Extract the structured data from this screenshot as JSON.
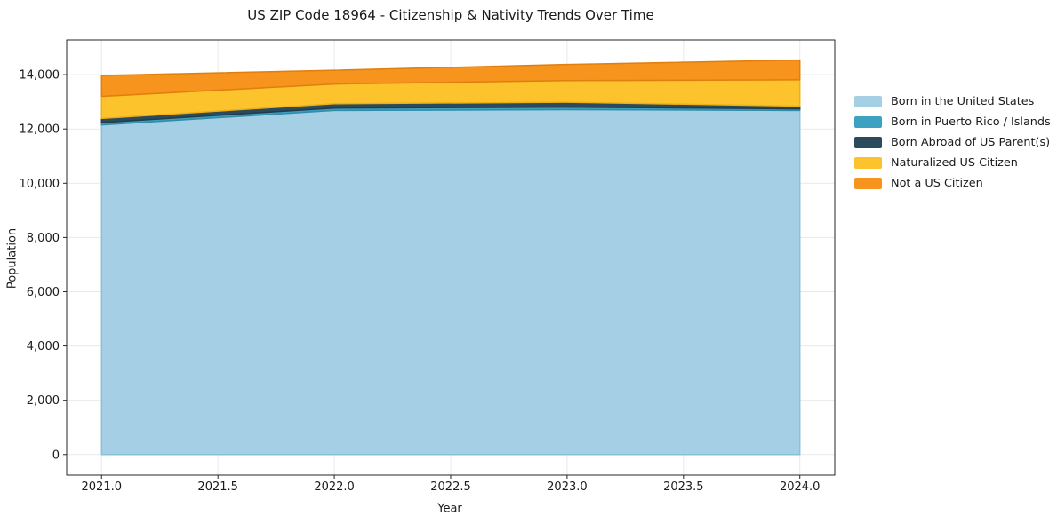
{
  "chart_data": {
    "type": "area",
    "stacked": true,
    "title": "US ZIP Code 18964 - Citizenship & Nativity Trends Over Time",
    "xlabel": "Year",
    "ylabel": "Population",
    "x": [
      2021,
      2022,
      2023,
      2024
    ],
    "series": [
      {
        "name": "Born in the United States",
        "color": "#a5cfe4",
        "edge_color": "#8ac1da",
        "values": [
          12150,
          12680,
          12710,
          12680
        ]
      },
      {
        "name": "Born in Puerto Rico / Islands",
        "color": "#3da2c2",
        "edge_color": "#2f8dab",
        "values": [
          85,
          90,
          95,
          60
        ]
      },
      {
        "name": "Born Abroad of US Parent(s)",
        "color": "#2b4a5c",
        "edge_color": "#223c4b",
        "values": [
          150,
          160,
          180,
          100
        ]
      },
      {
        "name": "Naturalized US Citizen",
        "color": "#fcc32d",
        "edge_color": "#edb014",
        "values": [
          815,
          725,
          800,
          970
        ]
      },
      {
        "name": "Not a US Citizen",
        "color": "#f7941e",
        "edge_color": "#e07f0d",
        "values": [
          770,
          510,
          590,
          730
        ]
      }
    ],
    "x_ticks": [
      2021.0,
      2021.5,
      2022.0,
      2022.5,
      2023.0,
      2023.5,
      2024.0
    ],
    "x_tick_labels": [
      "2021.0",
      "2021.5",
      "2022.0",
      "2022.5",
      "2023.0",
      "2023.5",
      "2024.0"
    ],
    "y_ticks": [
      0,
      2000,
      4000,
      6000,
      8000,
      10000,
      12000,
      14000
    ],
    "y_tick_labels": [
      "0",
      "2,000",
      "4,000",
      "6,000",
      "8,000",
      "10,000",
      "12,000",
      "14,000"
    ],
    "xlim": [
      2020.85,
      2024.15
    ],
    "ylim": [
      -760,
      15280
    ],
    "grid": true,
    "grid_color": "#e9e9e9",
    "axis_color": "#262626",
    "text_color": "#1a1a1a",
    "legend_position": "right"
  }
}
